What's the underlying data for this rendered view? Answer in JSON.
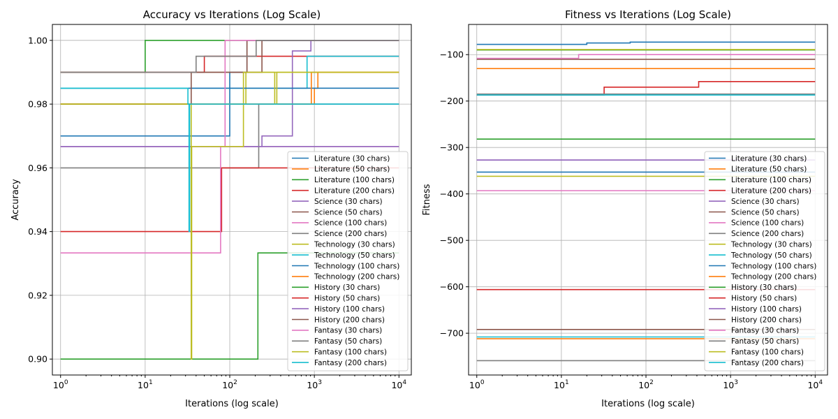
{
  "chart_data": [
    {
      "type": "line",
      "title": "Accuracy vs Iterations (Log Scale)",
      "xlabel": "Iterations (log scale)",
      "ylabel": "Accuracy",
      "xscale": "log",
      "xlim": [
        0.8,
        14000
      ],
      "ylim": [
        0.895,
        1.005
      ],
      "grid": true,
      "legend_position": "lower right",
      "x_ticks": [
        {
          "v": 1,
          "b": "10",
          "e": "0"
        },
        {
          "v": 10,
          "b": "10",
          "e": "1"
        },
        {
          "v": 100,
          "b": "10",
          "e": "2"
        },
        {
          "v": 1000,
          "b": "10",
          "e": "3"
        },
        {
          "v": 10000,
          "b": "10",
          "e": "4"
        }
      ],
      "y_ticks": [
        {
          "v": 0.9,
          "label": "0.90"
        },
        {
          "v": 0.92,
          "label": "0.92"
        },
        {
          "v": 0.94,
          "label": "0.94"
        },
        {
          "v": 0.96,
          "label": "0.96"
        },
        {
          "v": 0.98,
          "label": "0.98"
        },
        {
          "v": 1.0,
          "label": "1.00"
        }
      ],
      "series": [
        {
          "name": "Literature (30 chars)",
          "color": "#1f77b4",
          "steps": [
            [
              1,
              0.97
            ],
            [
              100,
              0.99
            ],
            [
              160,
              1.0
            ],
            [
              10000,
              1.0
            ]
          ]
        },
        {
          "name": "Literature (50 chars)",
          "color": "#ff7f0e",
          "steps": [
            [
              1,
              0.98
            ],
            [
              1000,
              0.985
            ],
            [
              1100,
              0.99
            ],
            [
              10000,
              0.99
            ]
          ]
        },
        {
          "name": "Literature (100 chars)",
          "color": "#2ca02c",
          "steps": [
            [
              1,
              0.99
            ],
            [
              9,
              0.99
            ],
            [
              10,
              1.0
            ],
            [
              10000,
              1.0
            ]
          ]
        },
        {
          "name": "Literature (200 chars)",
          "color": "#d62728",
          "steps": [
            [
              1,
              0.99
            ],
            [
              50,
              0.995
            ],
            [
              60,
              0.995
            ],
            [
              10000,
              0.995
            ]
          ]
        },
        {
          "name": "Science (30 chars)",
          "color": "#9467bd",
          "steps": [
            [
              1,
              0.9667
            ],
            [
              230,
              0.9667
            ],
            [
              240,
              0.97
            ],
            [
              540,
              0.97
            ],
            [
              550,
              0.9967
            ],
            [
              900,
              0.9967
            ],
            [
              910,
              1.0
            ],
            [
              10000,
              1.0
            ]
          ]
        },
        {
          "name": "Science (50 chars)",
          "color": "#8c564b",
          "steps": [
            [
              1,
              0.99
            ],
            [
              150,
              0.99
            ],
            [
              160,
              1.0
            ],
            [
              10000,
              1.0
            ]
          ]
        },
        {
          "name": "Science (100 chars)",
          "color": "#e377c2",
          "steps": [
            [
              1,
              0.9667
            ],
            [
              10000,
              0.9667
            ]
          ]
        },
        {
          "name": "Science (200 chars)",
          "color": "#7f7f7f",
          "steps": [
            [
              1,
              0.96
            ],
            [
              215,
              0.96
            ],
            [
              220,
              0.98
            ],
            [
              10000,
              0.98
            ]
          ]
        },
        {
          "name": "Technology (30 chars)",
          "color": "#bcbd22",
          "steps": [
            [
              1,
              0.98
            ],
            [
              150,
              0.98
            ],
            [
              155,
              0.99
            ],
            [
              10000,
              0.99
            ]
          ]
        },
        {
          "name": "Technology (50 chars)",
          "color": "#17becf",
          "steps": [
            [
              1,
              0.985
            ],
            [
              800,
              0.985
            ],
            [
              820,
              0.995
            ],
            [
              10000,
              0.995
            ]
          ]
        },
        {
          "name": "Technology (100 chars)",
          "color": "#1f77b4",
          "steps": [
            [
              1,
              0.985
            ],
            [
              10000,
              0.985
            ]
          ]
        },
        {
          "name": "Technology (200 chars)",
          "color": "#ff7f0e",
          "steps": [
            [
              1,
              0.98
            ],
            [
              900,
              0.98
            ],
            [
              920,
              0.99
            ],
            [
              10000,
              0.99
            ]
          ]
        },
        {
          "name": "History (30 chars)",
          "color": "#2ca02c",
          "steps": [
            [
              1,
              0.9
            ],
            [
              210,
              0.9
            ],
            [
              215,
              0.9333
            ],
            [
              10000,
              0.9333
            ]
          ]
        },
        {
          "name": "History (50 chars)",
          "color": "#d62728",
          "steps": [
            [
              1,
              0.94
            ],
            [
              78,
              0.94
            ],
            [
              80,
              0.96
            ],
            [
              10000,
              0.96
            ]
          ]
        },
        {
          "name": "History (100 chars)",
          "color": "#9467bd",
          "steps": [
            [
              1,
              0.9667
            ],
            [
              10000,
              0.9667
            ]
          ]
        },
        {
          "name": "History (200 chars)",
          "color": "#8c564b",
          "steps": [
            [
              1,
              0.98
            ],
            [
              33,
              0.98
            ],
            [
              35,
              0.99
            ],
            [
              230,
              0.99
            ],
            [
              240,
              1.0
            ],
            [
              10000,
              1.0
            ]
          ]
        },
        {
          "name": "Fantasy (30 chars)",
          "color": "#e377c2",
          "steps": [
            [
              1,
              0.9333
            ],
            [
              76,
              0.9333
            ],
            [
              78,
              0.9667
            ],
            [
              87,
              0.9667
            ],
            [
              88,
              1.0
            ],
            [
              10000,
              1.0
            ]
          ]
        },
        {
          "name": "Fantasy (50 chars)",
          "color": "#7f7f7f",
          "steps": [
            [
              1,
              0.99
            ],
            [
              38,
              0.99
            ],
            [
              40,
              0.995
            ],
            [
              200,
              0.995
            ],
            [
              205,
              1.0
            ],
            [
              10000,
              1.0
            ]
          ]
        },
        {
          "name": "Fantasy (100 chars)",
          "color": "#bcbd22",
          "steps": [
            [
              1,
              0.98
            ],
            [
              34,
              0.98
            ],
            [
              35,
              0.9
            ],
            [
              35.5,
              0.9667
            ],
            [
              140,
              0.9667
            ],
            [
              145,
              0.99
            ],
            [
              320,
              0.99
            ],
            [
              340,
              0.98
            ],
            [
              360,
              0.99
            ],
            [
              10000,
              0.99
            ]
          ]
        },
        {
          "name": "Fantasy (200 chars)",
          "color": "#17becf",
          "steps": [
            [
              1,
              0.985
            ],
            [
              32,
              0.98
            ],
            [
              33,
              0.94
            ],
            [
              33.5,
              0.98
            ],
            [
              10000,
              0.98
            ]
          ]
        }
      ]
    },
    {
      "type": "line",
      "title": "Fitness vs Iterations (Log Scale)",
      "xlabel": "Iterations (log scale)",
      "ylabel": "Fitness",
      "xscale": "log",
      "xlim": [
        0.8,
        14000
      ],
      "ylim": [
        -790,
        -35
      ],
      "grid": true,
      "legend_position": "right",
      "x_ticks": [
        {
          "v": 1,
          "b": "10",
          "e": "0"
        },
        {
          "v": 10,
          "b": "10",
          "e": "1"
        },
        {
          "v": 100,
          "b": "10",
          "e": "2"
        },
        {
          "v": 1000,
          "b": "10",
          "e": "3"
        },
        {
          "v": 10000,
          "b": "10",
          "e": "4"
        }
      ],
      "y_ticks": [
        {
          "v": -100,
          "label": "−100"
        },
        {
          "v": -200,
          "label": "−200"
        },
        {
          "v": -300,
          "label": "−300"
        },
        {
          "v": -400,
          "label": "−400"
        },
        {
          "v": -500,
          "label": "−500"
        },
        {
          "v": -600,
          "label": "−600"
        },
        {
          "v": -700,
          "label": "−700"
        }
      ],
      "series": [
        {
          "name": "Literature (30 chars)",
          "color": "#1f77b4",
          "steps": [
            [
              1,
              -78
            ],
            [
              18,
              -78
            ],
            [
              20,
              -75
            ],
            [
              60,
              -75
            ],
            [
              65,
              -73
            ],
            [
              10000,
              -73
            ]
          ]
        },
        {
          "name": "Literature (50 chars)",
          "color": "#ff7f0e",
          "steps": [
            [
              1,
              -130
            ],
            [
              10000,
              -130
            ]
          ]
        },
        {
          "name": "Literature (100 chars)",
          "color": "#2ca02c",
          "steps": [
            [
              1,
              -90
            ],
            [
              10000,
              -90
            ]
          ]
        },
        {
          "name": "Literature (200 chars)",
          "color": "#d62728",
          "steps": [
            [
              1,
              -187
            ],
            [
              30,
              -187
            ],
            [
              32,
              -170
            ],
            [
              400,
              -170
            ],
            [
              420,
              -158
            ],
            [
              10000,
              -158
            ]
          ]
        },
        {
          "name": "Science (30 chars)",
          "color": "#9467bd",
          "steps": [
            [
              1,
              -327
            ],
            [
              10000,
              -327
            ]
          ]
        },
        {
          "name": "Science (50 chars)",
          "color": "#8c564b",
          "steps": [
            [
              1,
              -110
            ],
            [
              10000,
              -110
            ]
          ]
        },
        {
          "name": "Science (100 chars)",
          "color": "#e377c2",
          "steps": [
            [
              1,
              -108
            ],
            [
              15,
              -108
            ],
            [
              16,
              -100
            ],
            [
              10000,
              -100
            ]
          ]
        },
        {
          "name": "Science (200 chars)",
          "color": "#7f7f7f",
          "steps": [
            [
              1,
              -185
            ],
            [
              10000,
              -185
            ]
          ]
        },
        {
          "name": "Technology (30 chars)",
          "color": "#bcbd22",
          "steps": [
            [
              1,
              -89
            ],
            [
              10000,
              -89
            ]
          ]
        },
        {
          "name": "Technology (50 chars)",
          "color": "#17becf",
          "steps": [
            [
              1,
              -187
            ],
            [
              10000,
              -187
            ]
          ]
        },
        {
          "name": "Technology (100 chars)",
          "color": "#1f77b4",
          "steps": [
            [
              1,
              -353
            ],
            [
              10000,
              -353
            ]
          ]
        },
        {
          "name": "Technology (200 chars)",
          "color": "#ff7f0e",
          "steps": [
            [
              1,
              -712
            ],
            [
              10000,
              -712
            ]
          ]
        },
        {
          "name": "History (30 chars)",
          "color": "#2ca02c",
          "steps": [
            [
              1,
              -282
            ],
            [
              10000,
              -282
            ]
          ]
        },
        {
          "name": "History (50 chars)",
          "color": "#d62728",
          "steps": [
            [
              1,
              -606
            ],
            [
              10000,
              -606
            ]
          ]
        },
        {
          "name": "History (100 chars)",
          "color": "#9467bd",
          "steps": [
            [
              1,
              -327
            ],
            [
              10000,
              -327
            ]
          ]
        },
        {
          "name": "History (200 chars)",
          "color": "#8c564b",
          "steps": [
            [
              1,
              -692
            ],
            [
              10000,
              -692
            ]
          ]
        },
        {
          "name": "Fantasy (30 chars)",
          "color": "#e377c2",
          "steps": [
            [
              1,
              -393
            ],
            [
              10000,
              -393
            ]
          ]
        },
        {
          "name": "Fantasy (50 chars)",
          "color": "#7f7f7f",
          "steps": [
            [
              1,
              -759
            ],
            [
              10000,
              -759
            ]
          ]
        },
        {
          "name": "Fantasy (100 chars)",
          "color": "#bcbd22",
          "steps": [
            [
              1,
              -362
            ],
            [
              10000,
              -362
            ]
          ]
        },
        {
          "name": "Fantasy (200 chars)",
          "color": "#17becf",
          "steps": [
            [
              1,
              -708
            ],
            [
              10000,
              -708
            ]
          ]
        }
      ]
    }
  ]
}
